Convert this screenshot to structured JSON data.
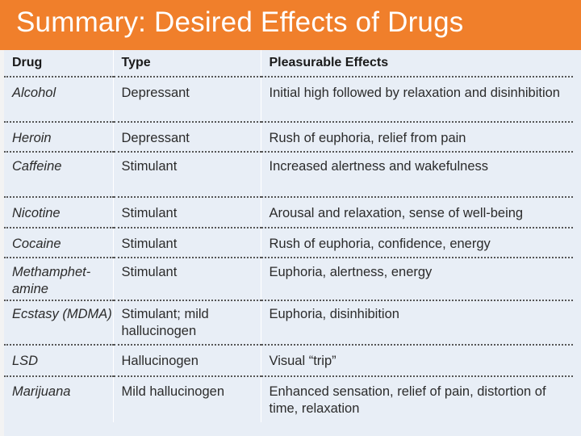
{
  "title": "Summary: Desired Effects of Drugs",
  "table": {
    "headers": [
      "Drug",
      "Type",
      "Pleasurable Effects"
    ],
    "rows": [
      [
        "Alcohol",
        "Depressant",
        "Initial high followed by relaxation and disinhibition"
      ],
      [
        "Heroin",
        "Depressant",
        "Rush of euphoria, relief from pain"
      ],
      [
        "Caffeine",
        "Stimulant",
        "Increased alertness and wakefulness"
      ],
      [
        "Nicotine",
        "Stimulant",
        "Arousal and relaxation, sense of well-being"
      ],
      [
        "Cocaine",
        "Stimulant",
        "Rush of euphoria, confidence, energy"
      ],
      [
        "Methamphet-amine",
        "Stimulant",
        "Euphoria, alertness, energy"
      ],
      [
        "Ecstasy (MDMA)",
        "Stimulant; mild hallucinogen",
        "Euphoria, disinhibition"
      ],
      [
        "LSD",
        "Hallucinogen",
        "Visual “trip”"
      ],
      [
        "Marijuana",
        "Mild hallucinogen",
        "Enhanced sensation, relief of pain, distortion of time, relaxation"
      ]
    ]
  },
  "colors": {
    "title_bar": "#f07f2b",
    "title_text": "#ffffff",
    "table_background": "#e8eef6"
  }
}
